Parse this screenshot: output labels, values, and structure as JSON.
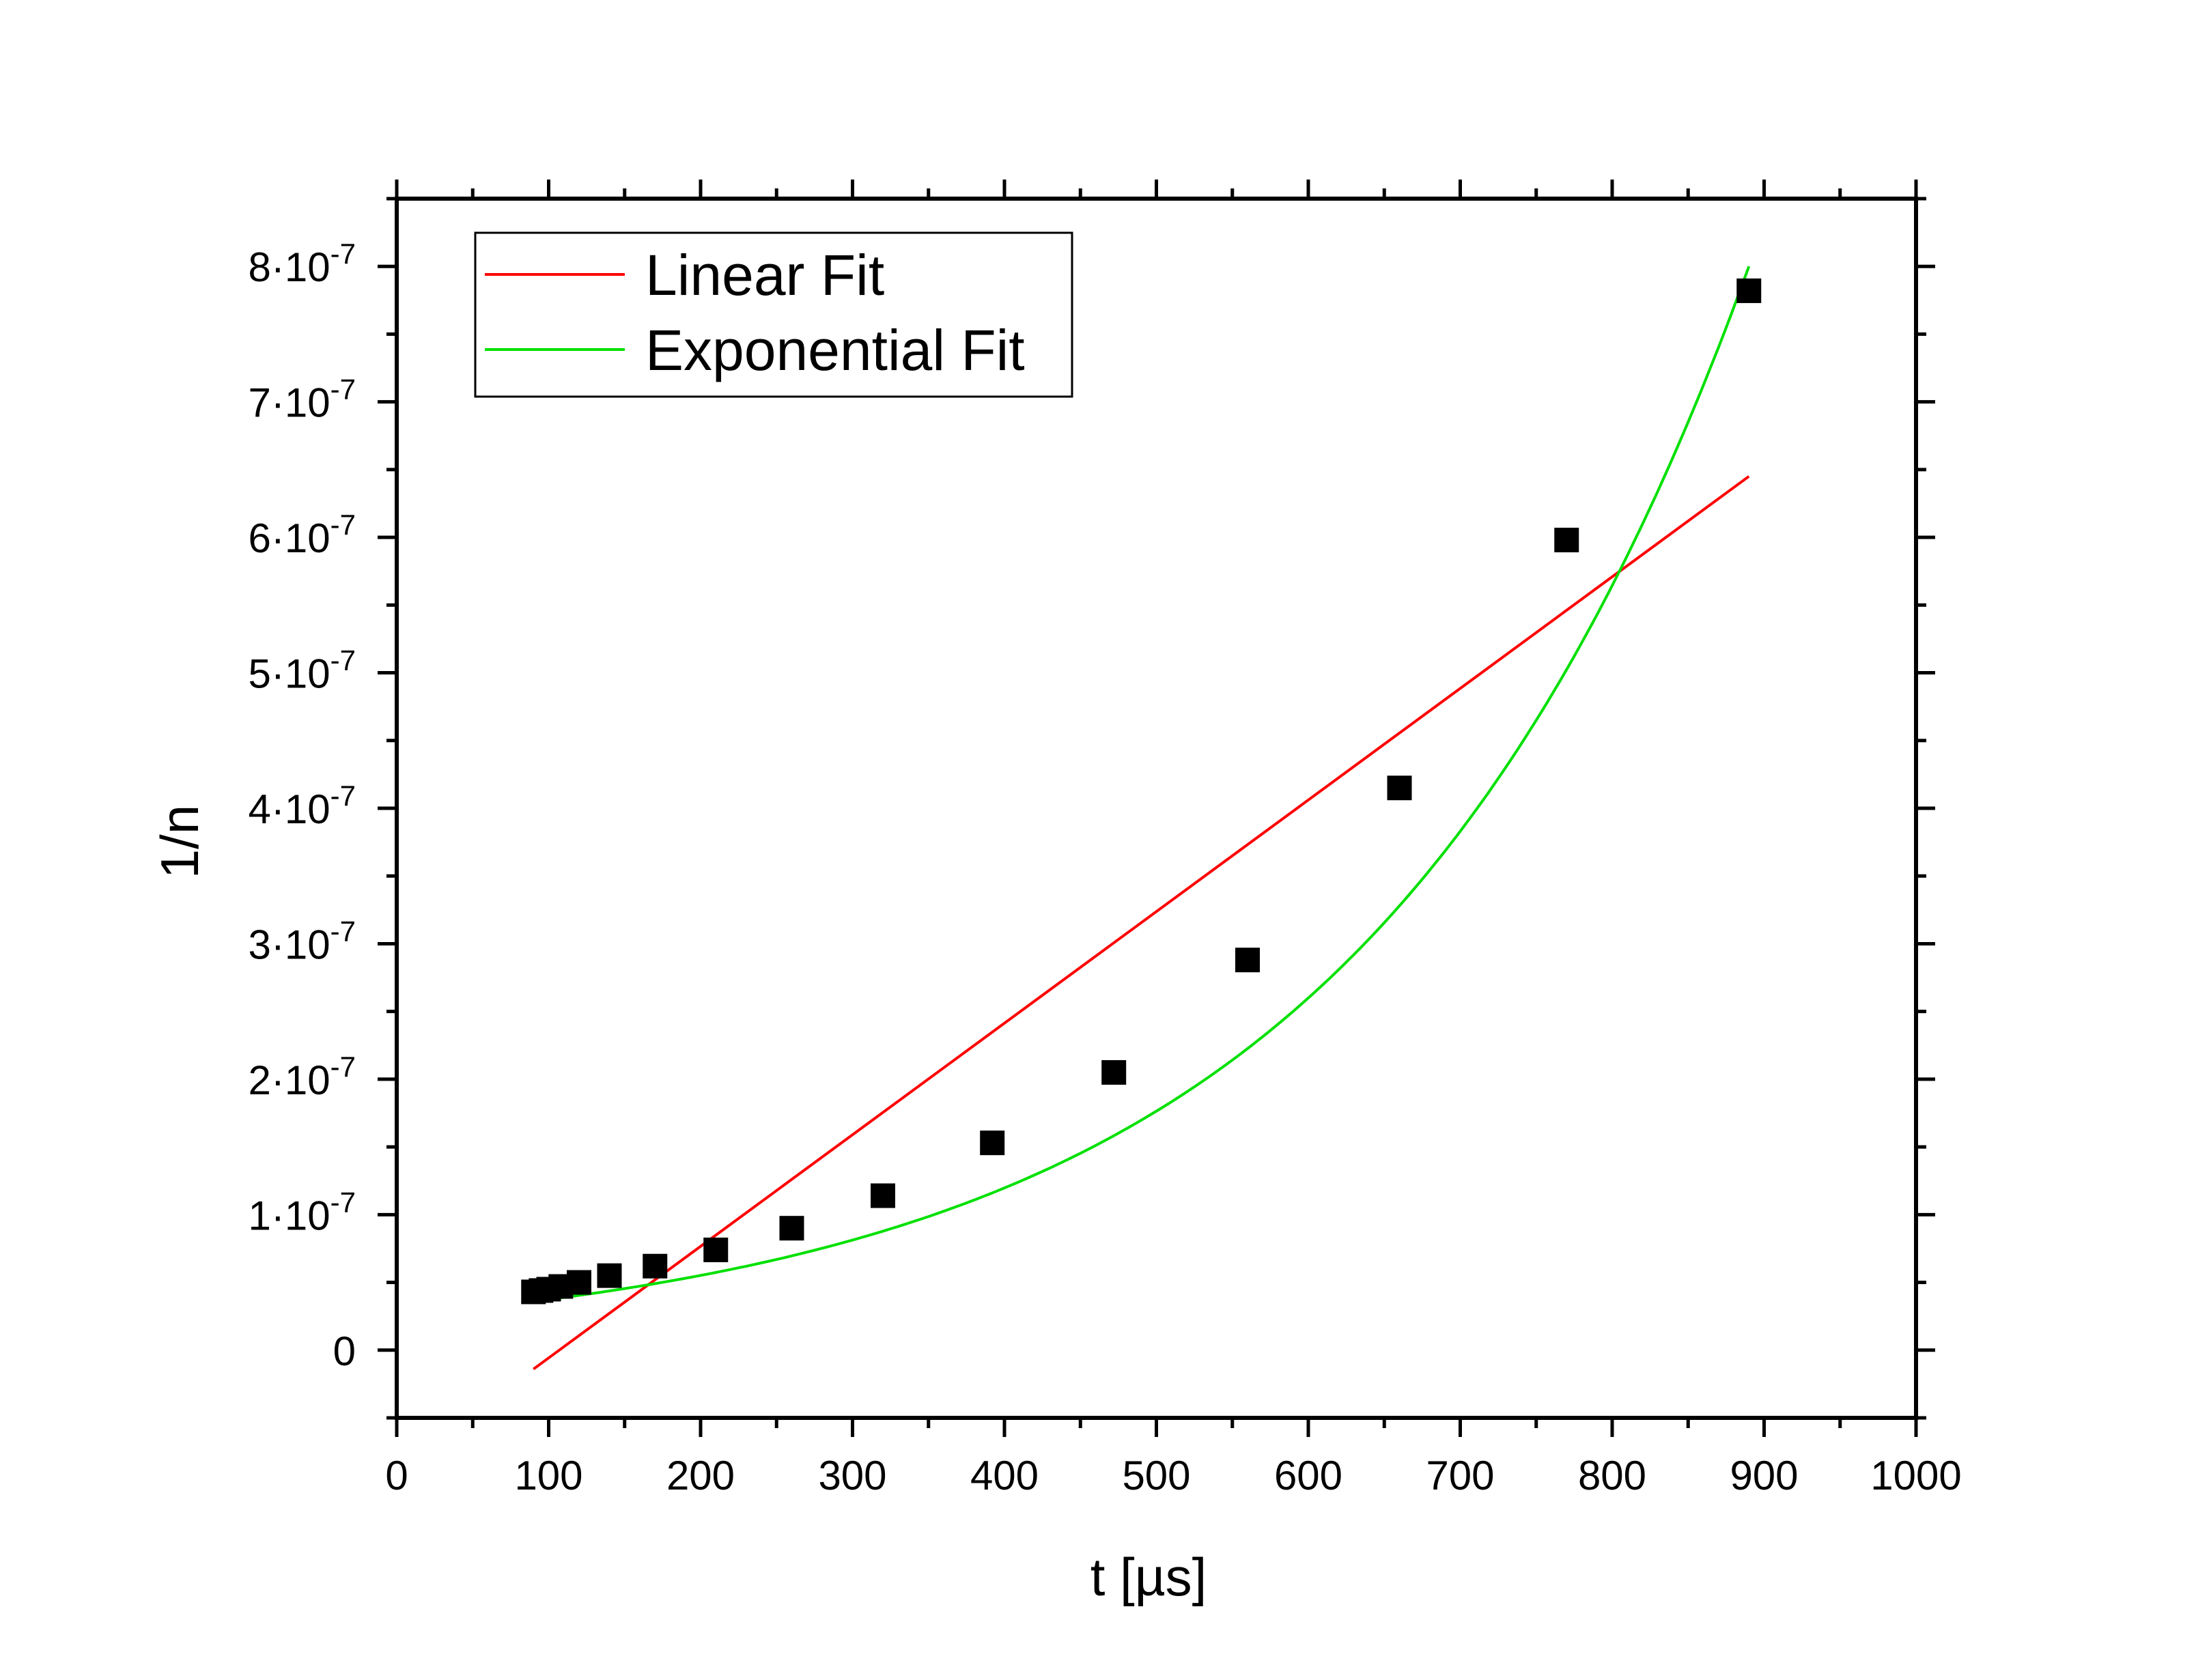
{
  "chart_data": {
    "type": "scatter",
    "xlabel": "t [µs]",
    "ylabel": "1/n",
    "xlim": [
      0,
      1000
    ],
    "ylim": [
      -5e-08,
      8.5e-07
    ],
    "x_ticks": [
      0,
      100,
      200,
      300,
      400,
      500,
      600,
      700,
      800,
      900,
      1000
    ],
    "x_tick_labels": [
      "0",
      "100",
      "200",
      "300",
      "400",
      "500",
      "600",
      "700",
      "800",
      "900",
      "1000"
    ],
    "y_ticks": [
      0,
      1e-07,
      2e-07,
      3e-07,
      4e-07,
      5e-07,
      6e-07,
      7e-07,
      8e-07
    ],
    "y_tick_labels": [
      {
        "mantissa": "0",
        "exponent": ""
      },
      {
        "mantissa": "1·10",
        "exponent": "-7"
      },
      {
        "mantissa": "2·10",
        "exponent": "-7"
      },
      {
        "mantissa": "3·10",
        "exponent": "-7"
      },
      {
        "mantissa": "4·10",
        "exponent": "-7"
      },
      {
        "mantissa": "5·10",
        "exponent": "-7"
      },
      {
        "mantissa": "6·10",
        "exponent": "-7"
      },
      {
        "mantissa": "7·10",
        "exponent": "-7"
      },
      {
        "mantissa": "8·10",
        "exponent": "-7"
      }
    ],
    "grid": false,
    "legend_position": "top-left",
    "points": {
      "marker": "square",
      "color": "#000000",
      "x": [
        90,
        95,
        100,
        108,
        120,
        140,
        170,
        210,
        260,
        320,
        392,
        472,
        560,
        660,
        770,
        890
      ],
      "y": [
        4.3e-08,
        4.4e-08,
        4.5e-08,
        4.7e-08,
        5e-08,
        5.5e-08,
        6.2e-08,
        7.4e-08,
        9e-08,
        1.14e-07,
        1.53e-07,
        2.05e-07,
        2.88e-07,
        4.15e-07,
        5.98e-07,
        7.82e-07
      ]
    },
    "series": [
      {
        "name": "Linear Fit",
        "kind": "line",
        "color": "#ff0000",
        "x": [
          90,
          890
        ],
        "y": [
          -1.4e-08,
          6.45e-07
        ]
      },
      {
        "name": "Exponential Fit",
        "kind": "exponential",
        "color": "#00e000",
        "x_range": [
          90,
          890
        ],
        "y_at_x_start": 3.6e-08,
        "y_at_x_end": 8e-07
      }
    ]
  }
}
